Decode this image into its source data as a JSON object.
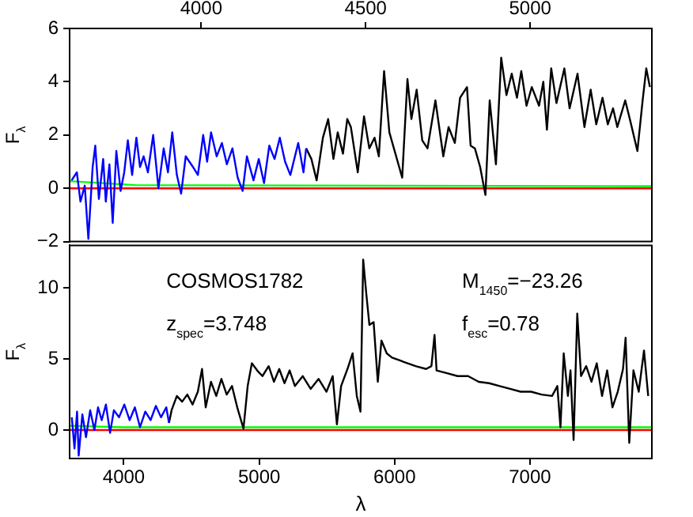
{
  "chart_data": [
    {
      "type": "line",
      "ylabel": "F$_{λ}$",
      "xlim": [
        3600,
        5370
      ],
      "xticks": [
        4000,
        4500,
        5000
      ],
      "ylim": [
        -2,
        6
      ],
      "yticks": [
        -2,
        0,
        2,
        4,
        6
      ],
      "grid": false,
      "legend": false,
      "series": [
        {
          "color": "#0000ff",
          "x": [
            3606,
            3622,
            3633,
            3646,
            3657,
            3670,
            3678,
            3689,
            3702,
            3710,
            3721,
            3731,
            3742,
            3755,
            3766,
            3777,
            3790,
            3803,
            3814,
            3825,
            3838,
            3854,
            3870,
            3886,
            3899,
            3912,
            3926,
            3939,
            3953,
            3975,
            3990,
            4006,
            4018,
            4030,
            4047,
            4063,
            4078,
            4095,
            4111,
            4126,
            4139,
            4159,
            4175,
            4191,
            4207,
            4223,
            4239,
            4255,
            4271,
            4295,
            4311,
            4319
          ],
          "values": [
            0.3,
            0.6,
            -0.5,
            0.1,
            -1.9,
            0.8,
            1.6,
            -0.4,
            1.1,
            -0.5,
            0.9,
            -1.3,
            1.4,
            -0.1,
            0.6,
            1.8,
            0.5,
            1.9,
            0.8,
            1.2,
            0.6,
            2.0,
            0,
            1.5,
            0.6,
            2.1,
            0.5,
            -0.2,
            1.2,
            0.8,
            0.5,
            2.0,
            1.0,
            2.1,
            1.2,
            1.7,
            0.9,
            1.5,
            0.4,
            -0.1,
            1.2,
            0.3,
            1.1,
            0.2,
            1.6,
            1.1,
            1.9,
            1.0,
            0.5,
            1.7,
            0.6,
            1.5
          ]
        },
        {
          "color": "#000000",
          "x": [
            4319,
            4335,
            4351,
            4370,
            4386,
            4402,
            4415,
            4431,
            4444,
            4455,
            4476,
            4495,
            4511,
            4527,
            4540,
            4556,
            4572,
            4611,
            4627,
            4639,
            4655,
            4672,
            4688,
            4712,
            4736,
            4752,
            4771,
            4787,
            4808,
            4819,
            4832,
            4848,
            4864,
            4877,
            4896,
            4912,
            4928,
            4944,
            4960,
            4973,
            4989,
            5005,
            5027,
            5040,
            5051,
            5064,
            5080,
            5104,
            5120,
            5144,
            5165,
            5184,
            5201,
            5220,
            5236,
            5252,
            5265,
            5289,
            5305,
            5326,
            5342,
            5353,
            5364
          ],
          "values": [
            1.5,
            1.1,
            0.3,
            1.9,
            2.6,
            1.1,
            2.1,
            1.3,
            2.6,
            2.3,
            0.6,
            2.7,
            1.5,
            1.9,
            1.2,
            4.4,
            2.1,
            0.4,
            4.1,
            2.6,
            3.7,
            1.8,
            1.5,
            3.3,
            1.2,
            2.3,
            1.7,
            3.4,
            3.8,
            1.6,
            1.5,
            0.8,
            -0.25,
            3.3,
            0.9,
            4.9,
            3.5,
            4.3,
            3.4,
            4.4,
            3.1,
            3.8,
            3.1,
            4.0,
            2.2,
            4.5,
            3.2,
            4.5,
            3.0,
            4.3,
            2.3,
            3.7,
            2.4,
            3.4,
            2.4,
            3.0,
            2.3,
            3.3,
            2.5,
            1.4,
            3.3,
            4.5,
            3.8
          ]
        },
        {
          "color": "#00ff00",
          "x": [
            3600,
            3800,
            5370
          ],
          "values": [
            0.27,
            0.12,
            0.08
          ]
        },
        {
          "color": "#ff0000",
          "x": [
            3600,
            5370
          ],
          "values": [
            0,
            0
          ]
        }
      ]
    },
    {
      "type": "line",
      "xlabel": "λ",
      "ylabel": "F$_{λ}$",
      "xlim": [
        3600,
        7900
      ],
      "xticks": [
        4000,
        5000,
        6000,
        7000
      ],
      "ylim": [
        -2,
        13
      ],
      "yticks": [
        0,
        5,
        10
      ],
      "grid": false,
      "legend": false,
      "annotations": [
        "COSMOS1782",
        "z$_{spec}$=3.748",
        "M$_{1450}$=−23.26",
        "f$_{esc}$=0.78"
      ],
      "series": [
        {
          "color": "#0000ff",
          "x": [
            3616,
            3636,
            3655,
            3667,
            3694,
            3721,
            3752,
            3783,
            3810,
            3837,
            3868,
            3899,
            3927,
            3965,
            4004,
            4043,
            4082,
            4120,
            4159,
            4198,
            4237,
            4275,
            4314,
            4334
          ],
          "values": [
            0.9,
            -1.3,
            1.3,
            -1.8,
            1.1,
            -0.5,
            1.4,
            0,
            1.6,
            0.7,
            1.8,
            -0.2,
            1.4,
            0.9,
            1.8,
            0.7,
            1.6,
            0.2,
            1.3,
            0.7,
            1.7,
            0.9,
            1.6,
            0.5
          ]
        },
        {
          "color": "#000000",
          "x": [
            4334,
            4353,
            4392,
            4431,
            4469,
            4508,
            4547,
            4578,
            4605,
            4644,
            4683,
            4721,
            4760,
            4799,
            4838,
            4884,
            4915,
            4946,
            4985,
            5024,
            5070,
            5109,
            5148,
            5187,
            5225,
            5264,
            5322,
            5380,
            5439,
            5497,
            5543,
            5574,
            5605,
            5652,
            5690,
            5721,
            5748,
            5768,
            5791,
            5814,
            5845,
            5876,
            5903,
            5942,
            5981,
            6039,
            6097,
            6155,
            6233,
            6272,
            6295,
            6310,
            6388,
            6465,
            6543,
            6621,
            6698,
            6776,
            6853,
            6931,
            7008,
            7086,
            7163,
            7202,
            7225,
            7249,
            7280,
            7299,
            7322,
            7349,
            7377,
            7415,
            7454,
            7493,
            7532,
            7570,
            7609,
            7648,
            7687,
            7706,
            7733,
            7764,
            7803,
            7842,
            7873
          ],
          "values": [
            0.5,
            1.4,
            2.4,
            2.0,
            2.5,
            1.8,
            2.7,
            4.3,
            1.6,
            3.4,
            2.4,
            3.6,
            2.5,
            3.1,
            1.6,
            0.1,
            3.1,
            4.7,
            4.2,
            3.8,
            4.5,
            3.4,
            4.3,
            3.3,
            4.2,
            3.1,
            3.8,
            2.9,
            3.6,
            2.7,
            3.8,
            0.4,
            3.1,
            4.3,
            5.4,
            2.4,
            1.3,
            12.0,
            9.6,
            7.4,
            7.6,
            3.4,
            6.3,
            5.4,
            5.1,
            4.9,
            4.7,
            4.5,
            4.3,
            4.5,
            6.7,
            4.2,
            4.0,
            3.8,
            3.8,
            3.4,
            3.3,
            3.1,
            2.9,
            2.7,
            2.7,
            2.5,
            2.4,
            3.1,
            0.2,
            5.4,
            2.4,
            4.2,
            -0.7,
            8.2,
            3.8,
            4.5,
            3.4,
            4.7,
            2.4,
            4.2,
            1.6,
            2.7,
            4.3,
            6.5,
            -0.9,
            4.2,
            2.7,
            5.6,
            2.4
          ]
        },
        {
          "color": "#00ff00",
          "x": [
            3600,
            4000,
            7900
          ],
          "values": [
            0.3,
            0.2,
            0.2
          ]
        },
        {
          "color": "#ff0000",
          "x": [
            3600,
            7900
          ],
          "values": [
            0,
            0
          ]
        }
      ]
    }
  ]
}
